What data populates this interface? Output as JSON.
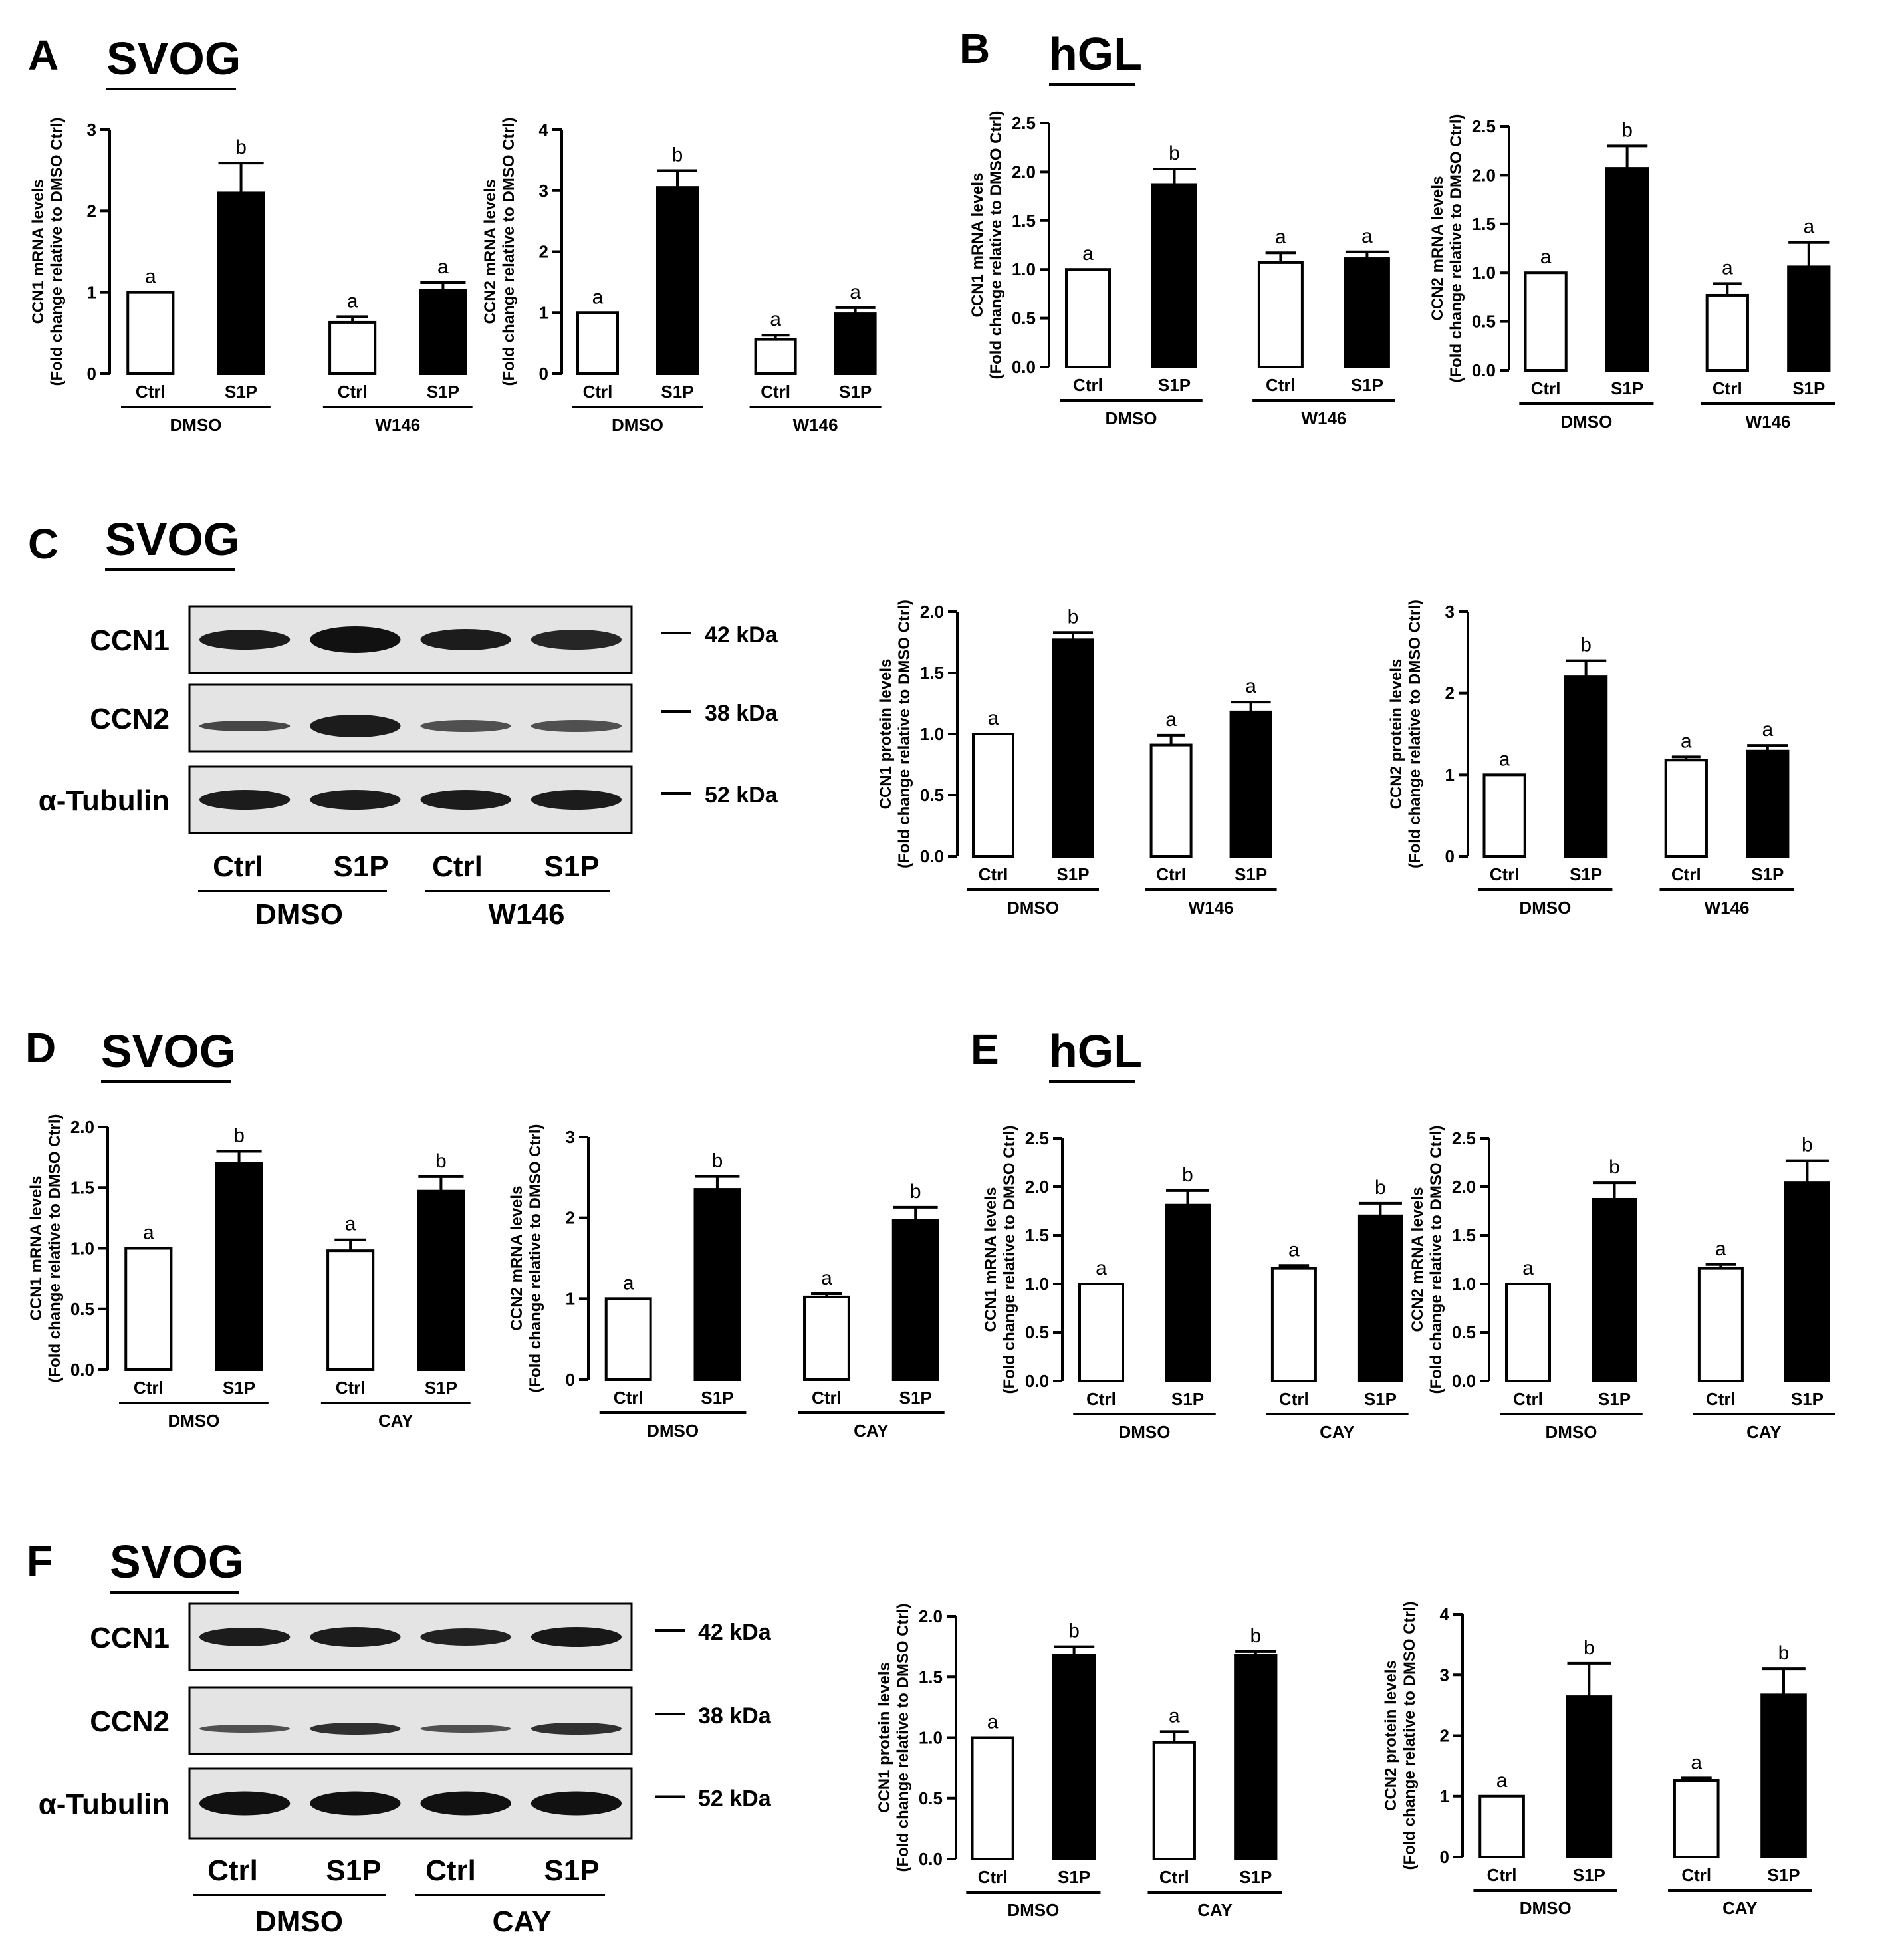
{
  "panels": [
    {
      "letter": "A",
      "cell": "SVOG"
    },
    {
      "letter": "B",
      "cell": "hGL"
    },
    {
      "letter": "C",
      "cell": "SVOG"
    },
    {
      "letter": "D",
      "cell": "SVOG"
    },
    {
      "letter": "E",
      "cell": "hGL"
    },
    {
      "letter": "F",
      "cell": "SVOG"
    }
  ],
  "blots": [
    {
      "rows": [
        {
          "label": "CCN1",
          "kda": "42 kDa"
        },
        {
          "label": "CCN2",
          "kda": "38 kDa"
        },
        {
          "label": "α-Tubulin",
          "kda": "52 kDa"
        }
      ],
      "lanes": [
        "Ctrl",
        "S1P",
        "Ctrl",
        "S1P"
      ],
      "groups": [
        "DMSO",
        "W146"
      ]
    },
    {
      "rows": [
        {
          "label": "CCN1",
          "kda": "42 kDa"
        },
        {
          "label": "CCN2",
          "kda": "38 kDa"
        },
        {
          "label": "α-Tubulin",
          "kda": "52 kDa"
        }
      ],
      "lanes": [
        "Ctrl",
        "S1P",
        "Ctrl",
        "S1P"
      ],
      "groups": [
        "DMSO",
        "CAY"
      ]
    }
  ],
  "chart_data": [
    {
      "type": "bar",
      "panel": "A",
      "ylabel": "CCN1 mRNA levels",
      "ylabel2": "(Fold change relative to DMSO Ctrl)",
      "ylim": [
        0,
        3
      ],
      "yticks": [
        "0",
        "1",
        "2",
        "3"
      ],
      "categories": [
        "Ctrl",
        "S1P",
        "Ctrl",
        "S1P"
      ],
      "groups": [
        "DMSO",
        "W146"
      ],
      "values": [
        1.0,
        2.22,
        0.63,
        1.03
      ],
      "errors": [
        0,
        0.37,
        0.07,
        0.09
      ],
      "letters": [
        "a",
        "b",
        "a",
        "a"
      ],
      "fills": [
        "#ffffff",
        "#000000",
        "#ffffff",
        "#000000"
      ]
    },
    {
      "type": "bar",
      "panel": "A",
      "ylabel": "CCN2 mRNA levels",
      "ylabel2": "(Fold change relative to DMSO Ctrl)",
      "ylim": [
        0,
        4
      ],
      "yticks": [
        "0",
        "1",
        "2",
        "3",
        "4"
      ],
      "categories": [
        "Ctrl",
        "S1P",
        "Ctrl",
        "S1P"
      ],
      "groups": [
        "DMSO",
        "W146"
      ],
      "values": [
        1.0,
        3.05,
        0.56,
        0.98
      ],
      "errors": [
        0,
        0.28,
        0.07,
        0.1
      ],
      "letters": [
        "a",
        "b",
        "a",
        "a"
      ],
      "fills": [
        "#ffffff",
        "#000000",
        "#ffffff",
        "#000000"
      ]
    },
    {
      "type": "bar",
      "panel": "B",
      "ylabel": "CCN1 mRNA levels",
      "ylabel2": "(Fold change relative to DMSO Ctrl)",
      "ylim": [
        0,
        2.5
      ],
      "yticks": [
        "0.0",
        "0.5",
        "1.0",
        "1.5",
        "2.0",
        "2.5"
      ],
      "categories": [
        "Ctrl",
        "S1P",
        "Ctrl",
        "S1P"
      ],
      "groups": [
        "DMSO",
        "W146"
      ],
      "values": [
        1.0,
        1.87,
        1.07,
        1.11
      ],
      "errors": [
        0,
        0.16,
        0.1,
        0.07
      ],
      "letters": [
        "a",
        "b",
        "a",
        "a"
      ],
      "fills": [
        "#ffffff",
        "#000000",
        "#ffffff",
        "#000000"
      ]
    },
    {
      "type": "bar",
      "panel": "B",
      "ylabel": "CCN2 mRNA levels",
      "ylabel2": "(Fold change relative to DMSO Ctrl)",
      "ylim": [
        0,
        2.5
      ],
      "yticks": [
        "0.0",
        "0.5",
        "1.0",
        "1.5",
        "2.0",
        "2.5"
      ],
      "categories": [
        "Ctrl",
        "S1P",
        "Ctrl",
        "S1P"
      ],
      "groups": [
        "DMSO",
        "W146"
      ],
      "values": [
        1.0,
        2.07,
        0.77,
        1.06
      ],
      "errors": [
        0,
        0.23,
        0.12,
        0.25
      ],
      "letters": [
        "a",
        "b",
        "a",
        "a"
      ],
      "fills": [
        "#ffffff",
        "#000000",
        "#ffffff",
        "#000000"
      ]
    },
    {
      "type": "bar",
      "panel": "C",
      "ylabel": "CCN1 protein levels",
      "ylabel2": "(Fold change relative to DMSO Ctrl)",
      "ylim": [
        0,
        2
      ],
      "yticks": [
        "0.0",
        "0.5",
        "1.0",
        "1.5",
        "2.0"
      ],
      "categories": [
        "Ctrl",
        "S1P",
        "Ctrl",
        "S1P"
      ],
      "groups": [
        "DMSO",
        "W146"
      ],
      "values": [
        1.0,
        1.77,
        0.91,
        1.18
      ],
      "errors": [
        0,
        0.06,
        0.08,
        0.08
      ],
      "letters": [
        "a",
        "b",
        "a",
        "a"
      ],
      "fills": [
        "#ffffff",
        "#000000",
        "#ffffff",
        "#000000"
      ]
    },
    {
      "type": "bar",
      "panel": "C",
      "ylabel": "CCN2 protein levels",
      "ylabel2": "(Fold change relative to DMSO Ctrl)",
      "ylim": [
        0,
        3
      ],
      "yticks": [
        "0",
        "1",
        "2",
        "3"
      ],
      "categories": [
        "Ctrl",
        "S1P",
        "Ctrl",
        "S1P"
      ],
      "groups": [
        "DMSO",
        "W146"
      ],
      "values": [
        1.0,
        2.2,
        1.18,
        1.29
      ],
      "errors": [
        0,
        0.2,
        0.04,
        0.07
      ],
      "letters": [
        "a",
        "b",
        "a",
        "a"
      ],
      "fills": [
        "#ffffff",
        "#000000",
        "#ffffff",
        "#000000"
      ]
    },
    {
      "type": "bar",
      "panel": "D",
      "ylabel": "CCN1 mRNA levels",
      "ylabel2": "(Fold change relative to DMSO Ctrl)",
      "ylim": [
        0,
        2
      ],
      "yticks": [
        "0.0",
        "0.5",
        "1.0",
        "1.5",
        "2.0"
      ],
      "categories": [
        "Ctrl",
        "S1P",
        "Ctrl",
        "S1P"
      ],
      "groups": [
        "DMSO",
        "CAY"
      ],
      "values": [
        1.0,
        1.7,
        0.98,
        1.47
      ],
      "errors": [
        0,
        0.1,
        0.09,
        0.12
      ],
      "letters": [
        "a",
        "b",
        "a",
        "b"
      ],
      "fills": [
        "#ffffff",
        "#000000",
        "#ffffff",
        "#000000"
      ]
    },
    {
      "type": "bar",
      "panel": "D",
      "ylabel": "CCN2 mRNA levels",
      "ylabel2": "(Fold change relative to DMSO Ctrl)",
      "ylim": [
        0,
        3
      ],
      "yticks": [
        "0",
        "1",
        "2",
        "3"
      ],
      "categories": [
        "Ctrl",
        "S1P",
        "Ctrl",
        "S1P"
      ],
      "groups": [
        "DMSO",
        "CAY"
      ],
      "values": [
        1.0,
        2.35,
        1.02,
        1.97
      ],
      "errors": [
        0,
        0.16,
        0.04,
        0.16
      ],
      "letters": [
        "a",
        "b",
        "a",
        "b"
      ],
      "fills": [
        "#ffffff",
        "#000000",
        "#ffffff",
        "#000000"
      ]
    },
    {
      "type": "bar",
      "panel": "E",
      "ylabel": "CCN1 mRNA levels",
      "ylabel2": "(Fold change relative to DMSO Ctrl)",
      "ylim": [
        0,
        2.5
      ],
      "yticks": [
        "0.0",
        "0.5",
        "1.0",
        "1.5",
        "2.0",
        "2.5"
      ],
      "categories": [
        "Ctrl",
        "S1P",
        "Ctrl",
        "S1P"
      ],
      "groups": [
        "DMSO",
        "CAY"
      ],
      "values": [
        1.0,
        1.81,
        1.16,
        1.7
      ],
      "errors": [
        0,
        0.15,
        0.03,
        0.13
      ],
      "letters": [
        "a",
        "b",
        "a",
        "b"
      ],
      "fills": [
        "#ffffff",
        "#000000",
        "#ffffff",
        "#000000"
      ]
    },
    {
      "type": "bar",
      "panel": "E",
      "ylabel": "CCN2 mRNA levels",
      "ylabel2": "(Fold change relative to DMSO Ctrl)",
      "ylim": [
        0,
        2.5
      ],
      "yticks": [
        "0.0",
        "0.5",
        "1.0",
        "1.5",
        "2.0",
        "2.5"
      ],
      "categories": [
        "Ctrl",
        "S1P",
        "Ctrl",
        "S1P"
      ],
      "groups": [
        "DMSO",
        "CAY"
      ],
      "values": [
        1.0,
        1.87,
        1.16,
        2.04
      ],
      "errors": [
        0,
        0.17,
        0.04,
        0.23
      ],
      "letters": [
        "a",
        "b",
        "a",
        "b"
      ],
      "fills": [
        "#ffffff",
        "#000000",
        "#ffffff",
        "#000000"
      ]
    },
    {
      "type": "bar",
      "panel": "F",
      "ylabel": "CCN1 protein levels",
      "ylabel2": "(Fold change relative to DMSO Ctrl)",
      "ylim": [
        0,
        2
      ],
      "yticks": [
        "0.0",
        "0.5",
        "1.0",
        "1.5",
        "2.0"
      ],
      "categories": [
        "Ctrl",
        "S1P",
        "Ctrl",
        "S1P"
      ],
      "groups": [
        "DMSO",
        "CAY"
      ],
      "values": [
        1.0,
        1.68,
        0.96,
        1.68
      ],
      "errors": [
        0,
        0.07,
        0.09,
        0.03
      ],
      "letters": [
        "a",
        "b",
        "a",
        "b"
      ],
      "fills": [
        "#ffffff",
        "#000000",
        "#ffffff",
        "#000000"
      ]
    },
    {
      "type": "bar",
      "panel": "F",
      "ylabel": "CCN2 protein levels",
      "ylabel2": "(Fold change relative to DMSO Ctrl)",
      "ylim": [
        0,
        4
      ],
      "yticks": [
        "0",
        "1",
        "2",
        "3",
        "4"
      ],
      "categories": [
        "Ctrl",
        "S1P",
        "Ctrl",
        "S1P"
      ],
      "groups": [
        "DMSO",
        "CAY"
      ],
      "values": [
        1.0,
        2.64,
        1.26,
        2.67
      ],
      "errors": [
        0,
        0.55,
        0.04,
        0.43
      ],
      "letters": [
        "a",
        "b",
        "a",
        "b"
      ],
      "fills": [
        "#ffffff",
        "#000000",
        "#ffffff",
        "#000000"
      ]
    }
  ]
}
